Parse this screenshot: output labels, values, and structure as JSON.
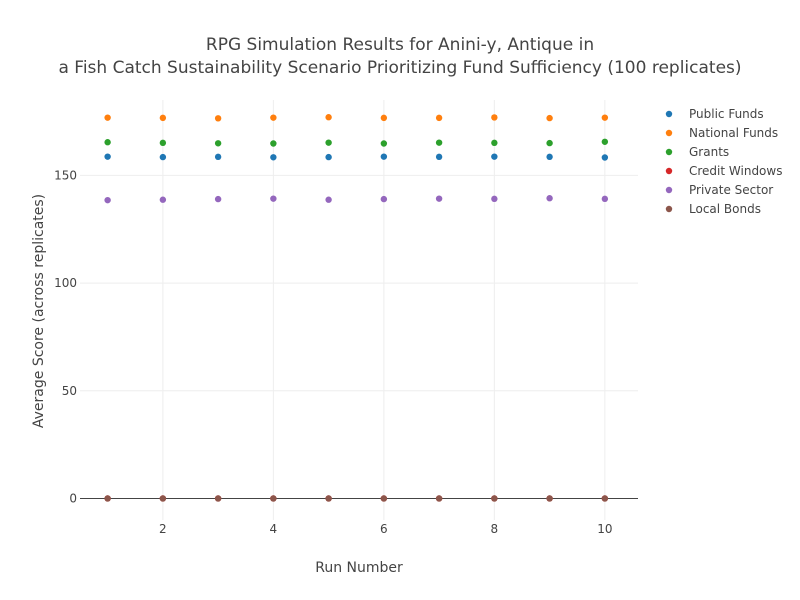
{
  "chart_data": {
    "type": "scatter",
    "title_line1": "RPG Simulation Results for Anini-y, Antique in",
    "title_line2": "a Fish Catch Sustainability Scenario Prioritizing Fund Sufficiency (100 replicates)",
    "xlabel": "Run Number",
    "ylabel": "Average Score (across replicates)",
    "xlim": [
      0.5,
      10.6
    ],
    "ylim": [
      -10,
      185
    ],
    "xticks": [
      2,
      4,
      6,
      8,
      10
    ],
    "yticks": [
      0,
      50,
      100,
      150
    ],
    "grid": true,
    "legend_position": "top-right",
    "x": [
      1,
      2,
      3,
      4,
      5,
      6,
      7,
      8,
      9,
      10
    ],
    "series": [
      {
        "name": "Public Funds",
        "color": "#1f77b4",
        "values": [
          158.7,
          158.5,
          158.6,
          158.4,
          158.5,
          158.7,
          158.6,
          158.7,
          158.6,
          158.3
        ]
      },
      {
        "name": "National Funds",
        "color": "#ff7f0e",
        "values": [
          176.8,
          176.7,
          176.5,
          176.8,
          177.0,
          176.7,
          176.7,
          176.9,
          176.6,
          176.8
        ]
      },
      {
        "name": "Grants",
        "color": "#2ca02c",
        "values": [
          165.4,
          165.1,
          164.9,
          164.8,
          165.2,
          164.8,
          165.2,
          165.1,
          165.0,
          165.6
        ]
      },
      {
        "name": "Credit Windows",
        "color": "#d62728",
        "values": [
          0,
          0,
          0,
          0,
          0,
          0,
          0,
          0,
          0,
          0
        ]
      },
      {
        "name": "Private Sector",
        "color": "#9467bd",
        "values": [
          138.5,
          138.7,
          139.0,
          139.2,
          138.7,
          139.0,
          139.2,
          139.1,
          139.4,
          139.1
        ]
      },
      {
        "name": "Local Bonds",
        "color": "#8c564b",
        "values": [
          0,
          0,
          0,
          0,
          0,
          0,
          0,
          0,
          0,
          0
        ]
      }
    ]
  }
}
